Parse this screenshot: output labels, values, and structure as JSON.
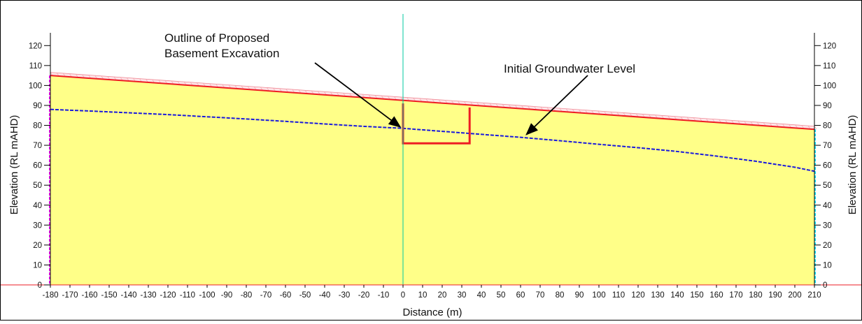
{
  "chart_data": {
    "type": "area",
    "title": "",
    "xlabel": "Distance (m)",
    "ylabel_left": "Elevation (RL mAHD)",
    "ylabel_right": "Elevation (RL mAHD)",
    "xlim": [
      -180,
      210
    ],
    "ylim": [
      0,
      125
    ],
    "x_ticks": [
      -180,
      -170,
      -160,
      -150,
      -140,
      -130,
      -120,
      -110,
      -100,
      -90,
      -80,
      -70,
      -60,
      -50,
      -40,
      -30,
      -20,
      -10,
      0,
      10,
      20,
      30,
      40,
      50,
      60,
      70,
      80,
      90,
      100,
      110,
      120,
      130,
      140,
      150,
      160,
      170,
      180,
      190,
      200,
      210
    ],
    "y_ticks": [
      0,
      10,
      20,
      30,
      40,
      50,
      60,
      70,
      80,
      90,
      100,
      110,
      120
    ],
    "grid": false,
    "series": [
      {
        "kind": "ground-surface",
        "color": "#ee1c24",
        "fill": "#ffff88",
        "x": [
          -180,
          210
        ],
        "y": [
          105,
          78
        ]
      },
      {
        "kind": "groundwater",
        "color": "#1a1adc",
        "x": [
          -180,
          -160,
          -140,
          -120,
          -100,
          -80,
          -60,
          -40,
          -20,
          0,
          20,
          40,
          60,
          80,
          100,
          120,
          140,
          160,
          180,
          200,
          210
        ],
        "y": [
          88,
          87.2,
          86.3,
          85.4,
          84.3,
          83.2,
          82,
          80.7,
          79.5,
          78.5,
          77,
          75.5,
          74,
          72.3,
          70.5,
          68.8,
          66.9,
          64.6,
          62,
          59,
          57
        ]
      },
      {
        "kind": "excavation-outline",
        "color": "#ee1c24",
        "x": [
          0,
          0,
          34,
          34
        ],
        "y": [
          91,
          71,
          71,
          89
        ]
      }
    ],
    "annotations": [
      {
        "lines": [
          "Outline of Proposed",
          "Basement Excavation"
        ],
        "target": [
          0,
          78.5
        ]
      },
      {
        "lines": [
          "Initial Groundwater Level"
        ],
        "target": [
          63,
          74
        ]
      }
    ],
    "colors": {
      "section_line": "#00c8a0",
      "left_boundary": "#ff00ff",
      "right_boundary": "#00e5ff",
      "datum": "#ee1c24"
    }
  }
}
